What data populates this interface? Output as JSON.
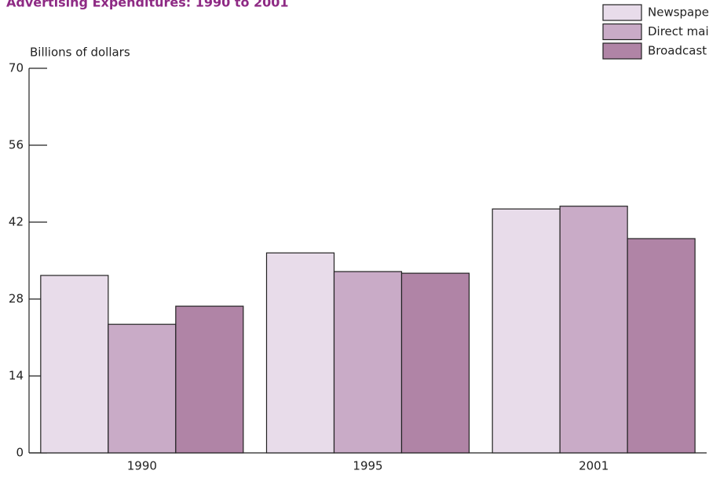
{
  "chart_data": {
    "type": "bar",
    "title": "Advertising Expenditures: 1990 to 2001",
    "y_axis_label": "Billions of dollars",
    "categories": [
      "1990",
      "1995",
      "2001"
    ],
    "series": [
      {
        "name": "Newspapers",
        "color": "#e8dcea",
        "values": [
          32.3,
          36.4,
          44.4
        ]
      },
      {
        "name": "Direct mail",
        "color": "#c9abc7",
        "values": [
          23.4,
          33.0,
          44.9
        ]
      },
      {
        "name": "Broadcast TV",
        "color": "#b084a6",
        "values": [
          26.7,
          32.7,
          39.0
        ]
      }
    ],
    "ylim": [
      0,
      70
    ],
    "yticks": [
      0,
      14,
      28,
      42,
      56,
      70
    ],
    "legend": "top-right"
  }
}
